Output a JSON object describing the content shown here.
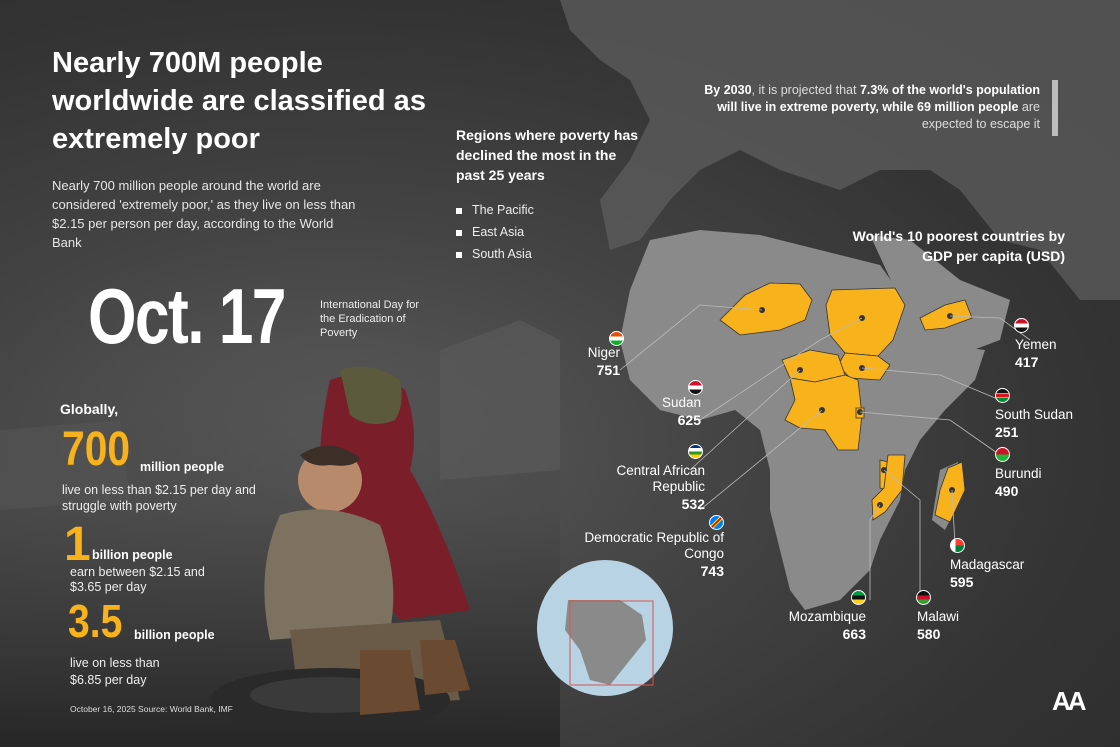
{
  "title": "Nearly 700M people worldwide are classified as extremely poor",
  "intro": "Nearly 700 million people around the world are considered 'extremely poor,' as they live on less than $2.15 per person per day, according to the World Bank",
  "date_big": "Oct. 17",
  "date_caption": "International Day for the Eradication of Poverty",
  "regions": {
    "heading": "Regions where poverty has declined the most in the past 25 years",
    "items": [
      "The Pacific",
      "East Asia",
      "South Asia"
    ]
  },
  "projection": {
    "lead": "By 2030",
    "text1": ", it is projected that ",
    "bold1": "7.3% of the world's population will live in extreme poverty, while 69 million people",
    "text2": " are expected to escape it"
  },
  "map_title": "World's 10 poorest countries by GDP per capita (USD)",
  "stats": {
    "globally": "Globally,",
    "s1": {
      "value": "700",
      "label": "million people",
      "desc": "live on less than $2.15 per day and struggle with poverty"
    },
    "s2": {
      "value": "1",
      "label": "billion people",
      "desc": "earn between $2.15 and $3.65 per day"
    },
    "s3": {
      "value": "3.5",
      "label": "billion people",
      "desc": "live on less than $6.85 per day"
    }
  },
  "source": "October 16, 2025   Source: World Bank, IMF",
  "countries": [
    {
      "name": "Niger",
      "value": "751"
    },
    {
      "name": "Sudan",
      "value": "625"
    },
    {
      "name": "Central African Republic",
      "value": "532"
    },
    {
      "name": "Democratic Republic of Congo",
      "value": "743"
    },
    {
      "name": "Yemen",
      "value": "417"
    },
    {
      "name": "South Sudan",
      "value": "251"
    },
    {
      "name": "Burundi",
      "value": "490"
    },
    {
      "name": "Madagascar",
      "value": "595"
    },
    {
      "name": "Mozambique",
      "value": "663"
    },
    {
      "name": "Malawi",
      "value": "580"
    }
  ],
  "logo": "AA",
  "colors": {
    "accent": "#f7b21c",
    "land": "#8a8a8a",
    "globe": "#b8d3e3",
    "locator": "#d9534f"
  }
}
